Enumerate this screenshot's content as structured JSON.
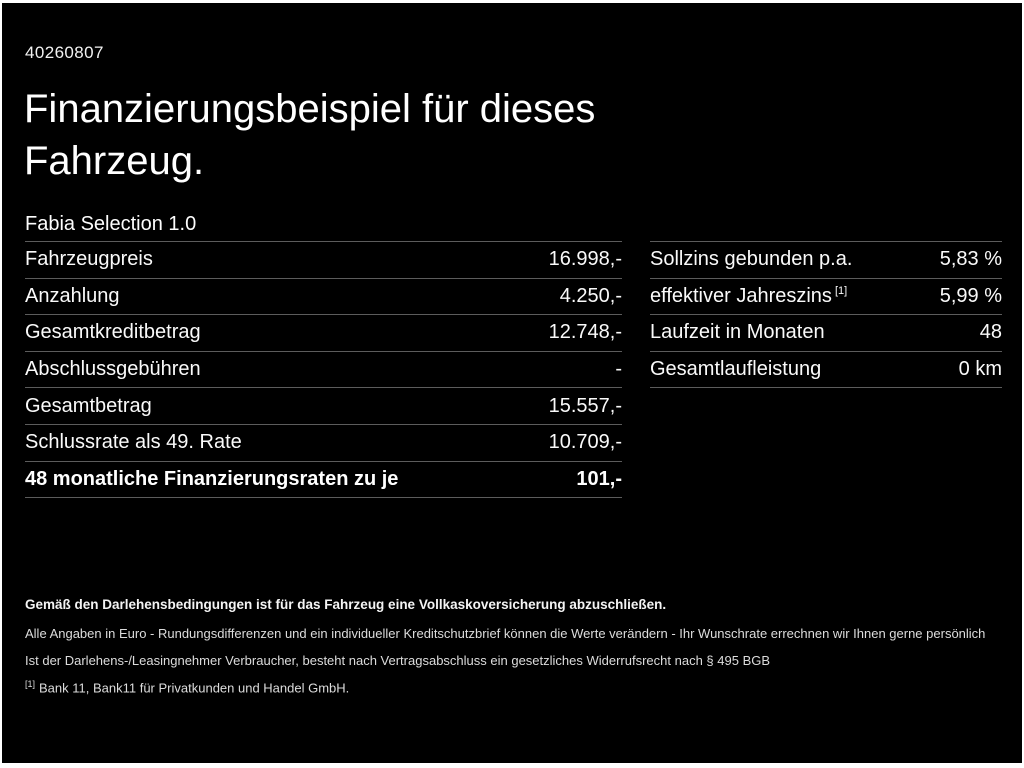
{
  "header": {
    "offer_id": "40260807",
    "title_line1": "Finanzierungsbeispiel für dieses",
    "title_line2": "Fahrzeug.",
    "model": "Fabia Selection 1.0"
  },
  "left_table": {
    "rows": [
      {
        "label": "Fahrzeugpreis",
        "value": "16.998,-"
      },
      {
        "label": "Anzahlung",
        "value": "4.250,-"
      },
      {
        "label": "Gesamtkreditbetrag",
        "value": "12.748,-"
      },
      {
        "label": "Abschlussgebühren",
        "value": "-"
      },
      {
        "label": "Gesamtbetrag",
        "value": "15.557,-"
      },
      {
        "label": "Schlussrate als 49. Rate",
        "value": "10.709,-"
      },
      {
        "label": "48 monatliche Finanzierungsraten zu je",
        "value": "101,-"
      }
    ]
  },
  "right_table": {
    "rows": [
      {
        "label": "Sollzins gebunden p.a.",
        "marker": "",
        "value": "5,83 %"
      },
      {
        "label": "effektiver Jahreszins",
        "marker": "[1]",
        "value": "5,99 %"
      },
      {
        "label": "Laufzeit in Monaten",
        "marker": "",
        "value": "48"
      },
      {
        "label": "Gesamtlaufleistung",
        "marker": "",
        "value": "0 km"
      }
    ]
  },
  "footnotes": {
    "bold_line": "Gemäß den Darlehensbedingungen ist für das Fahrzeug eine Vollkaskoversicherung abzuschließen.",
    "line1": "Alle Angaben in Euro - Rundungsdifferenzen und ein individueller Kreditschutzbrief können die Werte verändern - Ihr Wunschrate errechnen wir Ihnen gerne persönlich",
    "line2": "Ist der Darlehens-/Leasingnehmer Verbraucher, besteht nach Vertragsabschluss ein gesetzliches Widerrufsrecht nach § 495 BGB",
    "ref_marker": "[1]",
    "ref_text": "Bank 11, Bank11 für Privatkunden und Handel GmbH."
  },
  "colors": {
    "background": "#000000",
    "frame": "#ffffff",
    "text": "#ffffff",
    "divider": "#5c5c5c"
  }
}
